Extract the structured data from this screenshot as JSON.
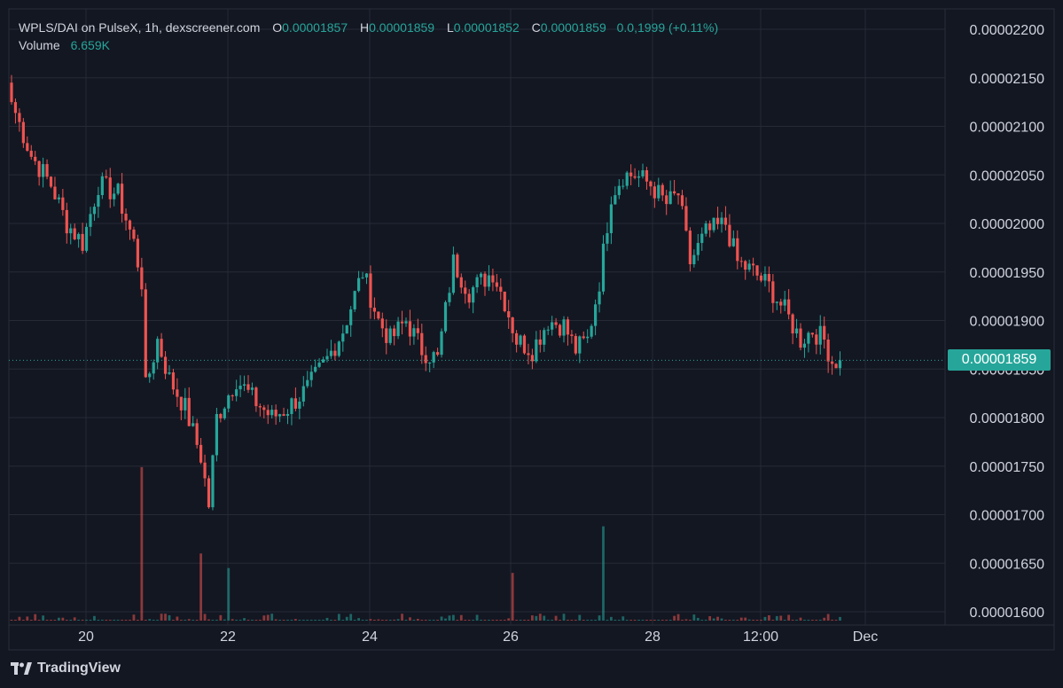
{
  "legend": {
    "pair": "WPLS/DAI on PulseX, 1h, dexscreener.com",
    "open_label": "O",
    "open": "0.00001857",
    "high_label": "H",
    "high": "0.00001859",
    "low_label": "L",
    "low": "0.00001852",
    "close_label": "C",
    "close": "0.00001859",
    "change": "0.0,1999 (+0.11%)",
    "volume_label": "Volume",
    "volume": "6.659K"
  },
  "last_price_label": "0.00001859",
  "branding": {
    "name": "TradingView"
  },
  "colors": {
    "background": "#131722",
    "up": "#26a69a",
    "down": "#ef5350",
    "grid": "#262a35",
    "text": "#d1d4dc",
    "tag": "#26a69a"
  },
  "chart_data": {
    "type": "candlestick",
    "interval": "1h",
    "y_tick_labels": [
      "0.00002200",
      "0.00002150",
      "0.00002100",
      "0.00002050",
      "0.00002000",
      "0.00001950",
      "0.00001900",
      "0.00001850",
      "0.00001800",
      "0.00001750",
      "0.00001700",
      "0.00001650",
      "0.00001600"
    ],
    "ylim": [
      1.59e-05,
      2.21e-05
    ],
    "x_tick_labels": [
      "20",
      "22",
      "24",
      "26",
      "28",
      "12:00",
      "Dec"
    ],
    "last_price": 1.859e-05,
    "path_anchors": [
      [
        0,
        2.125e-05
      ],
      [
        5,
        2.07e-05
      ],
      [
        10,
        2.04e-05
      ],
      [
        14,
        2e-05
      ],
      [
        18,
        1.98e-05
      ],
      [
        22,
        2.04e-05
      ],
      [
        27,
        2.03e-05
      ],
      [
        31,
        1.98e-05
      ],
      [
        33,
        1.94e-05
      ],
      [
        34,
        1.83e-05
      ],
      [
        37,
        1.88e-05
      ],
      [
        40,
        1.84e-05
      ],
      [
        44,
        1.81e-05
      ],
      [
        48,
        1.76e-05
      ],
      [
        50,
        1.71e-05
      ],
      [
        52,
        1.8e-05
      ],
      [
        57,
        1.84e-05
      ],
      [
        61,
        1.82e-05
      ],
      [
        66,
        1.8e-05
      ],
      [
        70,
        1.81e-05
      ],
      [
        75,
        1.83e-05
      ],
      [
        80,
        1.86e-05
      ],
      [
        84,
        1.89e-05
      ],
      [
        89,
        1.95e-05
      ],
      [
        93,
        1.9e-05
      ],
      [
        96,
        1.88e-05
      ],
      [
        100,
        1.9e-05
      ],
      [
        104,
        1.87e-05
      ],
      [
        108,
        1.86e-05
      ],
      [
        112,
        1.96e-05
      ],
      [
        116,
        1.93e-05
      ],
      [
        119,
        1.94e-05
      ],
      [
        122,
        1.95e-05
      ],
      [
        125,
        1.92e-05
      ],
      [
        128,
        1.88e-05
      ],
      [
        132,
        1.87e-05
      ],
      [
        136,
        1.9e-05
      ],
      [
        140,
        1.895e-05
      ],
      [
        143,
        1.87e-05
      ],
      [
        146,
        1.88e-05
      ],
      [
        149,
        1.94e-05
      ],
      [
        152,
        2.03e-05
      ],
      [
        155,
        2.05e-05
      ],
      [
        158,
        2.05e-05
      ],
      [
        162,
        2.04e-05
      ],
      [
        166,
        2.02e-05
      ],
      [
        169,
        2.03e-05
      ],
      [
        172,
        1.96e-05
      ],
      [
        176,
        1.99e-05
      ],
      [
        181,
        2e-05
      ],
      [
        184,
        1.96e-05
      ],
      [
        188,
        1.95e-05
      ],
      [
        192,
        1.935e-05
      ],
      [
        196,
        1.91e-05
      ],
      [
        200,
        1.88e-05
      ],
      [
        203,
        1.89e-05
      ],
      [
        206,
        1.88e-05
      ],
      [
        208,
        1.858e-05
      ],
      [
        210,
        1.859e-05
      ]
    ],
    "volume_spikes": [
      [
        33,
        1.749e-05
      ],
      [
        48,
        1.66e-05
      ],
      [
        150,
        1.688e-05
      ],
      [
        127,
        1.64e-05
      ],
      [
        55,
        1.645e-05
      ]
    ],
    "last_volume": "6.659K"
  }
}
